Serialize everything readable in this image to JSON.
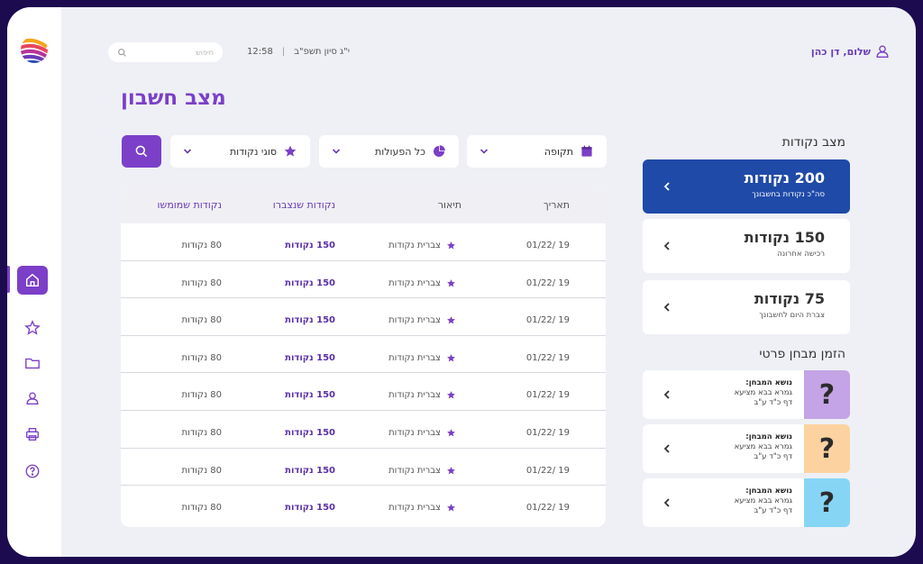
{
  "topbar": {
    "search_placeholder": "חיפוש",
    "time": "12:58",
    "separator": "|",
    "hebrew_date": "י\"ג סיון תשפ\"ב",
    "greeting": "שלום, דן כהן"
  },
  "page": {
    "title": "מצב חשבון"
  },
  "filters": {
    "period_label": "תקופה",
    "actions_label": "כל הפעולות",
    "points_type_label": "סוגי נקודות"
  },
  "table": {
    "headers": {
      "date": "תאריך",
      "description": "תיאור",
      "earned": "נקודות שנצברו",
      "used": "נקודות שמומשו"
    },
    "rows": [
      {
        "date": "19 /01/22",
        "description": "צברית נקודות",
        "earned": "150 נקודות",
        "used": "80 נקודות"
      },
      {
        "date": "19 /01/22",
        "description": "צברית נקודות",
        "earned": "150 נקודות",
        "used": "80 נקודות"
      },
      {
        "date": "19 /01/22",
        "description": "צברית נקודות",
        "earned": "150 נקודות",
        "used": "80 נקודות"
      },
      {
        "date": "19 /01/22",
        "description": "צברית נקודות",
        "earned": "150 נקודות",
        "used": "80 נקודות"
      },
      {
        "date": "19 /01/22",
        "description": "צברית נקודות",
        "earned": "150 נקודות",
        "used": "80 נקודות"
      },
      {
        "date": "19 /01/22",
        "description": "צברית נקודות",
        "earned": "150 נקודות",
        "used": "80 נקודות"
      },
      {
        "date": "19 /01/22",
        "description": "צברית נקודות",
        "earned": "150 נקודות",
        "used": "80 נקודות"
      },
      {
        "date": "19 /01/22",
        "description": "צברית נקודות",
        "earned": "150 נקודות",
        "used": "80 נקודות"
      }
    ]
  },
  "points": {
    "section_title": "מצב נקודות",
    "cards": [
      {
        "value": "200 נקודות",
        "sub": "סה\"כ נקודות בחשבונך"
      },
      {
        "value": "150 נקודות",
        "sub": "רכישה אחרונה"
      },
      {
        "value": "75 נקודות",
        "sub": "צברת היום לחשבונך"
      }
    ]
  },
  "quiz": {
    "section_title": "הזמן מבחן פרטי",
    "cards": [
      {
        "title": "נושא המבחן:",
        "line1": "גמרא בבא מציעא",
        "line2": "דף כ\"ד ע\"ב",
        "mark": "?",
        "color": "#c4a3e6"
      },
      {
        "title": "נושא המבחן:",
        "line1": "גמרא בבא מציעא",
        "line2": "דף כ\"ד ע\"ב",
        "mark": "?",
        "color": "#fcd3a0"
      },
      {
        "title": "נושא המבחן:",
        "line1": "גמרא בבא מציעא",
        "line2": "דף כ\"ד ע\"ב",
        "mark": "?",
        "color": "#87d5f5"
      }
    ]
  },
  "colors": {
    "accent": "#7b3fc8",
    "primary_card": "#1f4aa8",
    "background": "#eef0f5"
  }
}
